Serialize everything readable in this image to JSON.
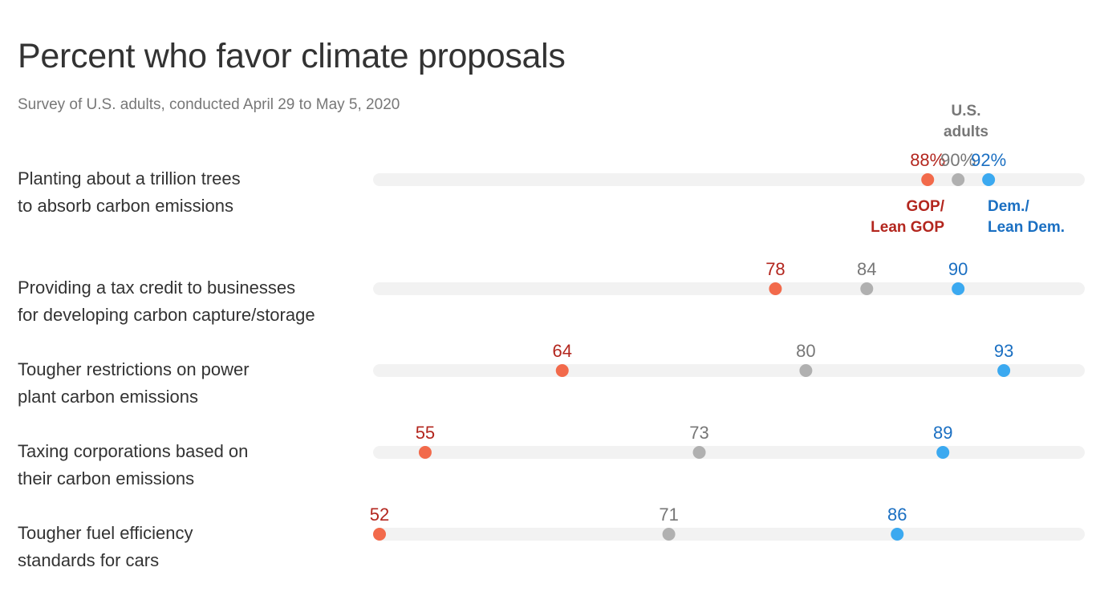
{
  "title": "Percent who favor climate proposals",
  "subtitle": "Survey of U.S. adults, conducted April 29 to May 5, 2020",
  "legend": {
    "us_line1": "U.S.",
    "us_line2": "adults",
    "gop_line1": "GOP/",
    "gop_line2": "Lean GOP",
    "dem_line1": "Dem./",
    "dem_line2": "Lean Dem."
  },
  "colors": {
    "gop_dot": "#f26a4b",
    "gop_text": "#b3261e",
    "us_dot": "#b0b0b0",
    "us_text": "#777777",
    "dem_dot": "#3ba9f0",
    "dem_text": "#1a6fc2",
    "track": "#f2f2f2"
  },
  "rows": [
    {
      "label_line1": "Planting about a trillion trees",
      "label_line2": "to absorb carbon emissions"
    },
    {
      "label_line1": "Providing a tax credit to businesses",
      "label_line2": "for developing carbon capture/storage"
    },
    {
      "label_line1": "Tougher restrictions on power",
      "label_line2": "plant carbon emissions"
    },
    {
      "label_line1": "Taxing corporations based on",
      "label_line2": "their carbon emissions"
    },
    {
      "label_line1": "Tougher fuel efficiency",
      "label_line2": "standards for cars"
    }
  ],
  "chart_data": {
    "type": "dot",
    "title": "Percent who favor climate proposals",
    "subtitle": "Survey of U.S. adults, conducted April 29 to May 5, 2020",
    "xlim": [
      52,
      98
    ],
    "categories": [
      "Planting about a trillion trees to absorb carbon emissions",
      "Providing a tax credit to businesses for developing carbon capture/storage",
      "Tougher restrictions on power plant carbon emissions",
      "Taxing corporations based on their carbon emissions",
      "Tougher fuel efficiency standards for cars"
    ],
    "series": [
      {
        "name": "GOP/ Lean GOP",
        "key": "gop",
        "values": [
          88,
          78,
          64,
          55,
          52
        ]
      },
      {
        "name": "U.S. adults",
        "key": "us",
        "values": [
          90,
          84,
          80,
          73,
          71
        ]
      },
      {
        "name": "Dem./ Lean Dem.",
        "key": "dem",
        "values": [
          92,
          90,
          93,
          89,
          86
        ]
      }
    ],
    "value_labels": [
      {
        "gop": "88%",
        "us": "90%",
        "dem": "92%"
      },
      {
        "gop": "78",
        "us": "84",
        "dem": "90"
      },
      {
        "gop": "64",
        "us": "80",
        "dem": "93"
      },
      {
        "gop": "55",
        "us": "73",
        "dem": "89"
      },
      {
        "gop": "52",
        "us": "71",
        "dem": "86"
      }
    ],
    "legend": "direct labels near top row"
  }
}
